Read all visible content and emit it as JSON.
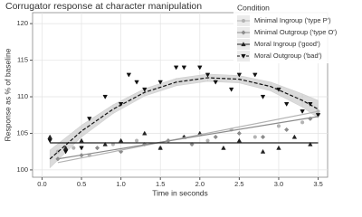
{
  "chart_data": {
    "type": "scatter",
    "title": "Corrugator response at character manipulation",
    "x_label": "Time in seconds",
    "y_label": "Response as % of baseline",
    "legend_title": "Condition",
    "legend_position": "top-right",
    "grid": true,
    "xlim": [
      -0.12,
      3.62
    ],
    "ylim": [
      99,
      121.5
    ],
    "xticks": [
      {
        "value": 0,
        "label": "0.0"
      },
      {
        "value": 0.5,
        "label": "0.5"
      },
      {
        "value": 1,
        "label": "1.0"
      },
      {
        "value": 1.5,
        "label": "1.5"
      },
      {
        "value": 2,
        "label": "2.0"
      },
      {
        "value": 2.5,
        "label": "2.5"
      },
      {
        "value": 3,
        "label": "3.0"
      },
      {
        "value": 3.5,
        "label": "3.5"
      }
    ],
    "yticks": [
      100,
      105,
      110,
      115,
      120
    ],
    "series": [
      {
        "name": "Minimal Ingroup  ('type P')",
        "color": "#b3b3b3",
        "marker": "circle",
        "line_style": "solid",
        "x": [
          0.2,
          0.4,
          0.6,
          0.9,
          1.2,
          1.5,
          1.8,
          2.1,
          2.4,
          2.7,
          3.0,
          3.3,
          3.5
        ],
        "values": [
          102.5,
          103,
          102,
          103.5,
          104,
          103,
          104.5,
          104,
          105.5,
          104.5,
          106,
          106.5,
          108
        ],
        "fit_x": [
          0.2,
          3.5
        ],
        "fit_values": [
          101,
          108
        ]
      },
      {
        "name": "Minimal Outgroup ('type O')",
        "color": "#8c8c8c",
        "marker": "diamond",
        "line_style": "solid",
        "x": [
          0.2,
          0.5,
          0.7,
          1.0,
          1.3,
          1.6,
          1.9,
          2.2,
          2.5,
          2.8,
          3.1,
          3.4
        ],
        "values": [
          101.5,
          102,
          103,
          102.5,
          103.5,
          104,
          103.5,
          104.5,
          105,
          104.5,
          105.5,
          107
        ],
        "fit_x": [
          0.2,
          3.5
        ],
        "fit_values": [
          101.5,
          107.3
        ]
      },
      {
        "name": "Moral Ingroup ('good')",
        "color": "#222222",
        "marker": "triangle-up",
        "line_style": "solid",
        "x": [
          0.1,
          0.3,
          0.5,
          0.8,
          1.0,
          1.3,
          1.5,
          1.8,
          2.0,
          2.3,
          2.5,
          2.8,
          3.0,
          3.2,
          3.4
        ],
        "values": [
          104.5,
          103,
          104,
          103.5,
          104,
          105,
          103,
          104.5,
          105,
          103,
          104,
          102.5,
          103,
          104.5,
          103.5
        ],
        "fit_x": [
          0.1,
          3.5
        ],
        "fit_values": [
          103.7,
          103.7
        ]
      },
      {
        "name": "Moral Outgroup ('bad')",
        "color": "#111111",
        "marker": "triangle-down",
        "line_style": "dashed",
        "x": [
          0.1,
          0.3,
          0.5,
          0.6,
          0.8,
          1.0,
          1.1,
          1.2,
          1.3,
          1.5,
          1.7,
          1.8,
          2.0,
          2.1,
          2.2,
          2.4,
          2.5,
          2.7,
          2.8,
          3.0,
          3.1,
          3.3,
          3.4,
          3.5
        ],
        "values": [
          104,
          102.5,
          103,
          107,
          110,
          109,
          113,
          112,
          111,
          112,
          114,
          114,
          114,
          113,
          112,
          111,
          113,
          113,
          110,
          111,
          109,
          108,
          109,
          107.5
        ],
        "fit_x": [
          0.1,
          0.5,
          0.9,
          1.3,
          1.7,
          2.1,
          2.5,
          2.9,
          3.3,
          3.5
        ],
        "fit_values": [
          101.5,
          105.3,
          108.3,
          110.6,
          112,
          112.6,
          112.4,
          111.4,
          109.5,
          108.3
        ],
        "fit_lower": [
          100.3,
          104.5,
          107.7,
          110.1,
          111.5,
          112.1,
          111.9,
          110.8,
          108.6,
          107.1
        ],
        "fit_upper": [
          102.7,
          106.1,
          108.9,
          111.1,
          112.5,
          113.1,
          112.9,
          112,
          110.4,
          109.5
        ]
      }
    ]
  }
}
